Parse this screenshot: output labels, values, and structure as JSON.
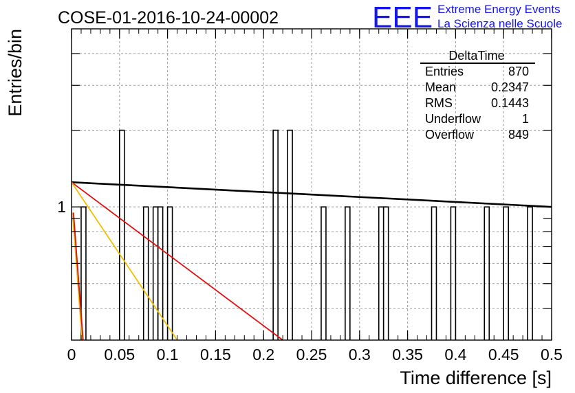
{
  "header": {
    "title": "COSE-01-2016-10-24-00002",
    "logo_text": "EEE",
    "brand_line1": "Extreme Energy Events",
    "brand_line2": "La Scienza nelle Scuole",
    "brand_color": "#1515f0"
  },
  "stats_box": {
    "title": "DeltaTime",
    "rows": [
      {
        "label": "Entries",
        "value": "870"
      },
      {
        "label": "Mean",
        "value": "0.2347"
      },
      {
        "label": "RMS",
        "value": "0.1443"
      },
      {
        "label": "Underflow",
        "value": "1"
      },
      {
        "label": "Overflow",
        "value": "849"
      }
    ]
  },
  "chart_data": {
    "type": "bar",
    "xlabel": "Time difference [s]",
    "ylabel": "Entries/bin",
    "xlim": [
      0,
      0.5
    ],
    "ylim": [
      0.3,
      5
    ],
    "yscale": "log",
    "grid": true,
    "x_ticks": [
      "0",
      "0.05",
      "0.1",
      "0.15",
      "0.2",
      "0.25",
      "0.3",
      "0.35",
      "0.4",
      "0.45",
      "0.5"
    ],
    "y_ticks": [
      "1"
    ],
    "bin_width": 0.005,
    "bins": [
      {
        "x": 0.01,
        "count": 1
      },
      {
        "x": 0.05,
        "count": 2
      },
      {
        "x": 0.075,
        "count": 1
      },
      {
        "x": 0.085,
        "count": 1
      },
      {
        "x": 0.09,
        "count": 1
      },
      {
        "x": 0.1,
        "count": 1
      },
      {
        "x": 0.21,
        "count": 2
      },
      {
        "x": 0.225,
        "count": 2
      },
      {
        "x": 0.26,
        "count": 1
      },
      {
        "x": 0.285,
        "count": 1
      },
      {
        "x": 0.32,
        "count": 1
      },
      {
        "x": 0.325,
        "count": 1
      },
      {
        "x": 0.375,
        "count": 1
      },
      {
        "x": 0.395,
        "count": 1
      },
      {
        "x": 0.43,
        "count": 1
      },
      {
        "x": 0.45,
        "count": 1
      },
      {
        "x": 0.475,
        "count": 1
      }
    ],
    "fit_lines": [
      {
        "color": "#000000",
        "points": [
          [
            0,
            1.25
          ],
          [
            0.5,
            1.0
          ]
        ]
      },
      {
        "color": "#e01010",
        "points": [
          [
            0,
            1.25
          ],
          [
            0.22,
            0.3
          ]
        ]
      },
      {
        "color": "#f0c000",
        "points": [
          [
            0,
            1.25
          ],
          [
            0.11,
            0.3
          ]
        ]
      },
      {
        "color": "#f0c000",
        "points": [
          [
            0.001,
            0.95
          ],
          [
            0.011,
            0.3
          ]
        ]
      },
      {
        "color": "#e01010",
        "points": [
          [
            0.002,
            0.95
          ],
          [
            0.012,
            0.3
          ]
        ]
      }
    ]
  }
}
